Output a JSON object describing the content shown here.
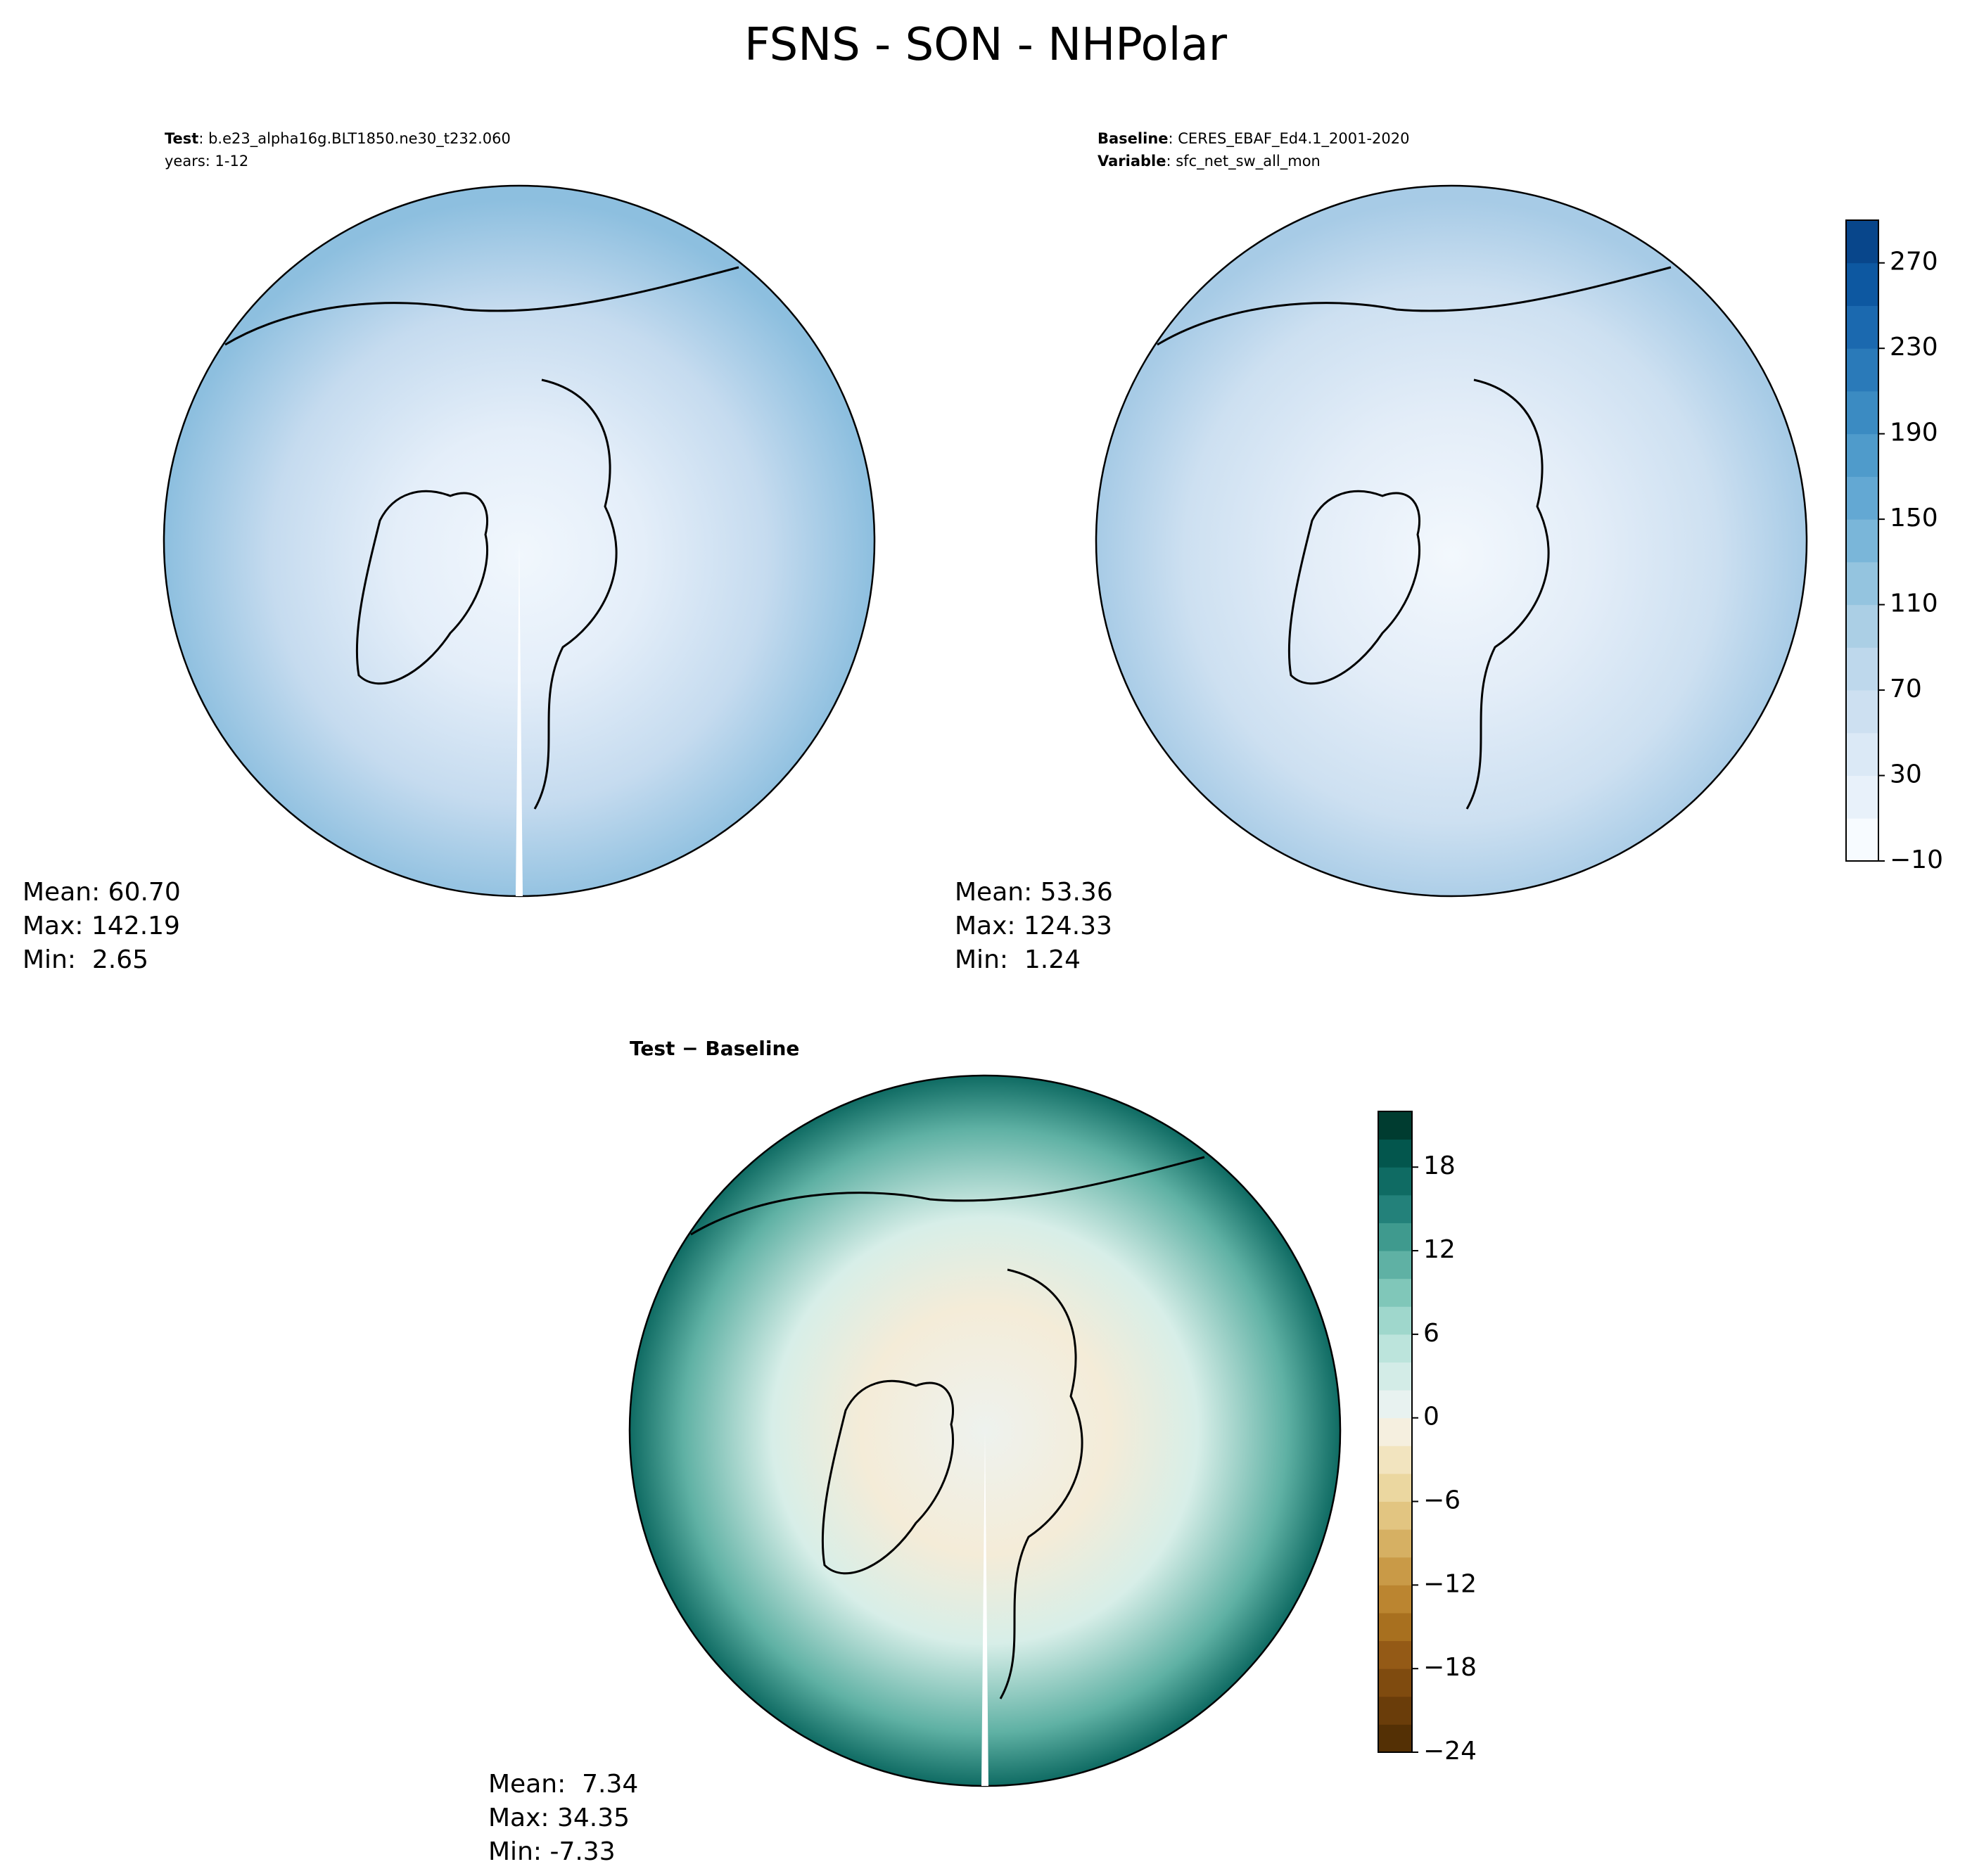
{
  "title": "FSNS - SON - NHPolar",
  "panels": [
    {
      "label_bold": "Test",
      "label_text": ": b.e23_alpha16g.BLT1850.ne30_t232.060",
      "line2_text": "years: 1-12",
      "stats": [
        "Mean: 60.70",
        "Max: 142.19",
        "Min:  2.65"
      ]
    },
    {
      "label_bold": "Baseline",
      "label_text": ": CERES_EBAF_Ed4.1_2001-2020",
      "line2_bold": "Variable",
      "line2_text": ": sfc_net_sw_all_mon",
      "stats": [
        "Mean: 53.36",
        "Max: 124.33",
        "Min:  1.24"
      ]
    },
    {
      "label_bold": "Test − Baseline",
      "stats": [
        "Mean:  7.34",
        "Max: 34.35",
        "Min: -7.33"
      ]
    }
  ],
  "colorbars": [
    {
      "ylim": [
        -10,
        290
      ],
      "yticks": [
        {
          "value": -10,
          "label": "−10"
        },
        30,
        70,
        110,
        150,
        190,
        230,
        270
      ],
      "colors": [
        "#f7fbff",
        "#e8f1fa",
        "#dbe9f6",
        "#cde0f1",
        "#bed8ec",
        "#abcfe5",
        "#94c4df",
        "#7ab6d9",
        "#63a8d3",
        "#4f9bcb",
        "#3b8bc2",
        "#2a7ab9",
        "#1b69af",
        "#0d58a1",
        "#08468b"
      ]
    },
    {
      "ylim": [
        -24,
        22
      ],
      "yticks": [
        {
          "value": -24,
          "label": "−24"
        },
        {
          "value": -18,
          "label": "−18"
        },
        {
          "value": -12,
          "label": "−12"
        },
        {
          "value": -6,
          "label": "−6"
        },
        0,
        6,
        12,
        18
      ],
      "colors": [
        "#543005",
        "#6a3d0a",
        "#7f4b0f",
        "#945a16",
        "#a8701f",
        "#bb8530",
        "#c99a47",
        "#d6b063",
        "#e2c581",
        "#ebd7a0",
        "#f2e4bf",
        "#f5efdf",
        "#e8f2f0",
        "#d3ece7",
        "#bce4dc",
        "#9fd7cc",
        "#80c7b9",
        "#5fb1a4",
        "#3f9a8e",
        "#23817a",
        "#0f6b63",
        "#03564d",
        "#003c30"
      ]
    }
  ]
}
